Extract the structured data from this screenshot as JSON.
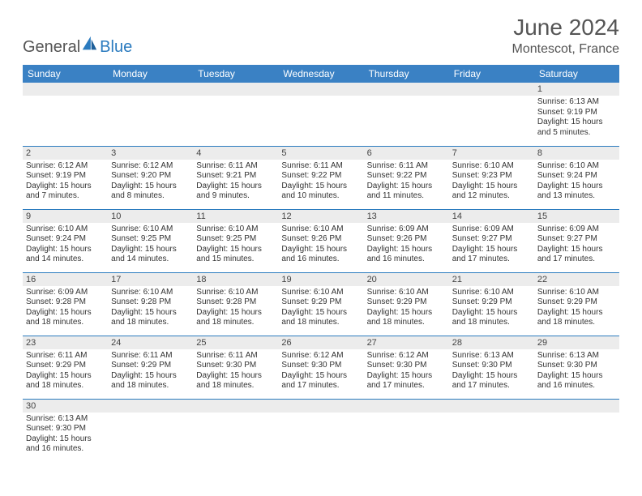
{
  "brand": {
    "name1": "General",
    "name2": "Blue"
  },
  "title": "June 2024",
  "location": "Montescot, France",
  "colors": {
    "header_bg": "#3a81c4",
    "header_text": "#ffffff",
    "rule": "#2b7bbf",
    "daynum_bg": "#ececec",
    "text": "#333333",
    "title_text": "#555555"
  },
  "weekdays": [
    "Sunday",
    "Monday",
    "Tuesday",
    "Wednesday",
    "Thursday",
    "Friday",
    "Saturday"
  ],
  "weeks": [
    [
      null,
      null,
      null,
      null,
      null,
      null,
      {
        "n": "1",
        "sr": "Sunrise: 6:13 AM",
        "ss": "Sunset: 9:19 PM",
        "dl": "Daylight: 15 hours and 5 minutes."
      }
    ],
    [
      {
        "n": "2",
        "sr": "Sunrise: 6:12 AM",
        "ss": "Sunset: 9:19 PM",
        "dl": "Daylight: 15 hours and 7 minutes."
      },
      {
        "n": "3",
        "sr": "Sunrise: 6:12 AM",
        "ss": "Sunset: 9:20 PM",
        "dl": "Daylight: 15 hours and 8 minutes."
      },
      {
        "n": "4",
        "sr": "Sunrise: 6:11 AM",
        "ss": "Sunset: 9:21 PM",
        "dl": "Daylight: 15 hours and 9 minutes."
      },
      {
        "n": "5",
        "sr": "Sunrise: 6:11 AM",
        "ss": "Sunset: 9:22 PM",
        "dl": "Daylight: 15 hours and 10 minutes."
      },
      {
        "n": "6",
        "sr": "Sunrise: 6:11 AM",
        "ss": "Sunset: 9:22 PM",
        "dl": "Daylight: 15 hours and 11 minutes."
      },
      {
        "n": "7",
        "sr": "Sunrise: 6:10 AM",
        "ss": "Sunset: 9:23 PM",
        "dl": "Daylight: 15 hours and 12 minutes."
      },
      {
        "n": "8",
        "sr": "Sunrise: 6:10 AM",
        "ss": "Sunset: 9:24 PM",
        "dl": "Daylight: 15 hours and 13 minutes."
      }
    ],
    [
      {
        "n": "9",
        "sr": "Sunrise: 6:10 AM",
        "ss": "Sunset: 9:24 PM",
        "dl": "Daylight: 15 hours and 14 minutes."
      },
      {
        "n": "10",
        "sr": "Sunrise: 6:10 AM",
        "ss": "Sunset: 9:25 PM",
        "dl": "Daylight: 15 hours and 14 minutes."
      },
      {
        "n": "11",
        "sr": "Sunrise: 6:10 AM",
        "ss": "Sunset: 9:25 PM",
        "dl": "Daylight: 15 hours and 15 minutes."
      },
      {
        "n": "12",
        "sr": "Sunrise: 6:10 AM",
        "ss": "Sunset: 9:26 PM",
        "dl": "Daylight: 15 hours and 16 minutes."
      },
      {
        "n": "13",
        "sr": "Sunrise: 6:09 AM",
        "ss": "Sunset: 9:26 PM",
        "dl": "Daylight: 15 hours and 16 minutes."
      },
      {
        "n": "14",
        "sr": "Sunrise: 6:09 AM",
        "ss": "Sunset: 9:27 PM",
        "dl": "Daylight: 15 hours and 17 minutes."
      },
      {
        "n": "15",
        "sr": "Sunrise: 6:09 AM",
        "ss": "Sunset: 9:27 PM",
        "dl": "Daylight: 15 hours and 17 minutes."
      }
    ],
    [
      {
        "n": "16",
        "sr": "Sunrise: 6:09 AM",
        "ss": "Sunset: 9:28 PM",
        "dl": "Daylight: 15 hours and 18 minutes."
      },
      {
        "n": "17",
        "sr": "Sunrise: 6:10 AM",
        "ss": "Sunset: 9:28 PM",
        "dl": "Daylight: 15 hours and 18 minutes."
      },
      {
        "n": "18",
        "sr": "Sunrise: 6:10 AM",
        "ss": "Sunset: 9:28 PM",
        "dl": "Daylight: 15 hours and 18 minutes."
      },
      {
        "n": "19",
        "sr": "Sunrise: 6:10 AM",
        "ss": "Sunset: 9:29 PM",
        "dl": "Daylight: 15 hours and 18 minutes."
      },
      {
        "n": "20",
        "sr": "Sunrise: 6:10 AM",
        "ss": "Sunset: 9:29 PM",
        "dl": "Daylight: 15 hours and 18 minutes."
      },
      {
        "n": "21",
        "sr": "Sunrise: 6:10 AM",
        "ss": "Sunset: 9:29 PM",
        "dl": "Daylight: 15 hours and 18 minutes."
      },
      {
        "n": "22",
        "sr": "Sunrise: 6:10 AM",
        "ss": "Sunset: 9:29 PM",
        "dl": "Daylight: 15 hours and 18 minutes."
      }
    ],
    [
      {
        "n": "23",
        "sr": "Sunrise: 6:11 AM",
        "ss": "Sunset: 9:29 PM",
        "dl": "Daylight: 15 hours and 18 minutes."
      },
      {
        "n": "24",
        "sr": "Sunrise: 6:11 AM",
        "ss": "Sunset: 9:29 PM",
        "dl": "Daylight: 15 hours and 18 minutes."
      },
      {
        "n": "25",
        "sr": "Sunrise: 6:11 AM",
        "ss": "Sunset: 9:30 PM",
        "dl": "Daylight: 15 hours and 18 minutes."
      },
      {
        "n": "26",
        "sr": "Sunrise: 6:12 AM",
        "ss": "Sunset: 9:30 PM",
        "dl": "Daylight: 15 hours and 17 minutes."
      },
      {
        "n": "27",
        "sr": "Sunrise: 6:12 AM",
        "ss": "Sunset: 9:30 PM",
        "dl": "Daylight: 15 hours and 17 minutes."
      },
      {
        "n": "28",
        "sr": "Sunrise: 6:13 AM",
        "ss": "Sunset: 9:30 PM",
        "dl": "Daylight: 15 hours and 17 minutes."
      },
      {
        "n": "29",
        "sr": "Sunrise: 6:13 AM",
        "ss": "Sunset: 9:30 PM",
        "dl": "Daylight: 15 hours and 16 minutes."
      }
    ],
    [
      {
        "n": "30",
        "sr": "Sunrise: 6:13 AM",
        "ss": "Sunset: 9:30 PM",
        "dl": "Daylight: 15 hours and 16 minutes."
      },
      null,
      null,
      null,
      null,
      null,
      null
    ]
  ]
}
